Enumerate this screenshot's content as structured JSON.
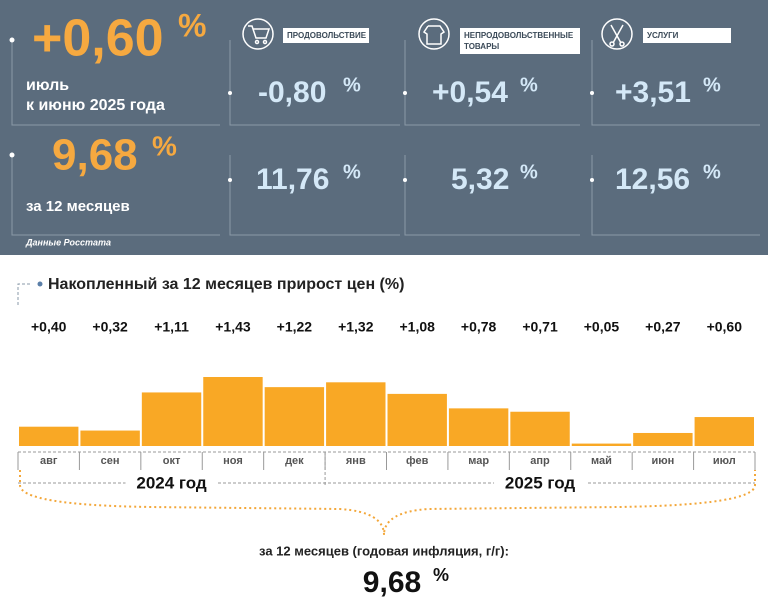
{
  "panel": {
    "unit": "%",
    "month": {
      "value": "+0,60",
      "label_1": "июль",
      "label_2": "к июню 2025 года"
    },
    "year": {
      "value": "9,68",
      "label": "за 12 месяцев"
    },
    "source": "Данные Росстата",
    "groups": [
      {
        "name": "ПРОДОВОЛЬСТВИЕ",
        "month": "-0,80",
        "year": "11,76"
      },
      {
        "name": "НЕПРОДОВОЛЬСТВЕННЫЕ ТОВАРЫ",
        "month": "+0,54",
        "year": "5,32"
      },
      {
        "name": "УСЛУГИ",
        "month": "+3,51",
        "year": "12,56"
      }
    ]
  },
  "chart_data": {
    "type": "bar",
    "title": "Накопленный за 12 месяцев прирост цен (%)",
    "categories": [
      "авг",
      "сен",
      "окт",
      "ноя",
      "дек",
      "янв",
      "фев",
      "мар",
      "апр",
      "май",
      "июн",
      "июл"
    ],
    "values": [
      0.4,
      0.32,
      1.11,
      1.43,
      1.22,
      1.32,
      1.08,
      0.78,
      0.71,
      0.05,
      0.27,
      0.6
    ],
    "value_labels": [
      "+0,40",
      "+0,32",
      "+1,11",
      "+1,43",
      "+1,22",
      "+1,32",
      "+1,08",
      "+0,78",
      "+0,71",
      "+0,05",
      "+0,27",
      "+0,60"
    ],
    "color": "#f9a825",
    "year_labels": [
      "2024 год",
      "2025 год"
    ],
    "footer": {
      "label": "за 12 месяцев (годовая инфляция, г/г):",
      "value": "9,68",
      "unit": "%"
    }
  }
}
